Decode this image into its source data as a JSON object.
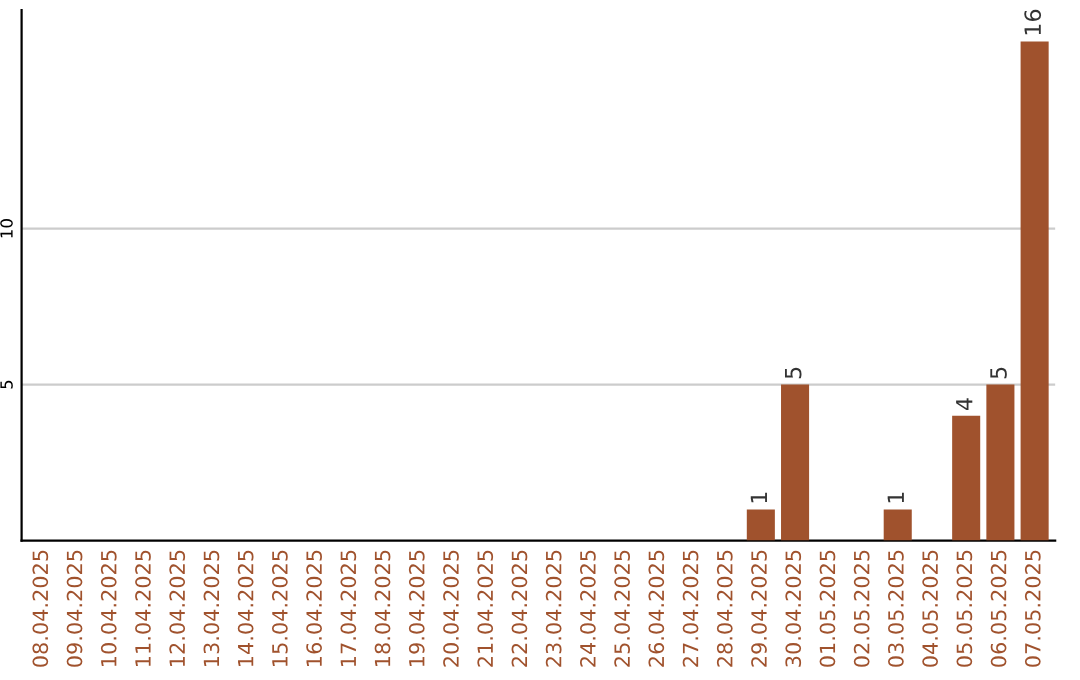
{
  "chart_data": {
    "type": "bar",
    "categories": [
      "08.04.2025",
      "09.04.2025",
      "10.04.2025",
      "11.04.2025",
      "12.04.2025",
      "13.04.2025",
      "14.04.2025",
      "15.04.2025",
      "16.04.2025",
      "17.04.2025",
      "18.04.2025",
      "19.04.2025",
      "20.04.2025",
      "21.04.2025",
      "22.04.2025",
      "23.04.2025",
      "24.04.2025",
      "25.04.2025",
      "26.04.2025",
      "27.04.2025",
      "28.04.2025",
      "29.04.2025",
      "30.04.2025",
      "01.05.2025",
      "02.05.2025",
      "03.05.2025",
      "04.05.2025",
      "05.05.2025",
      "06.05.2025",
      "07.05.2025"
    ],
    "values": [
      0,
      0,
      0,
      0,
      0,
      0,
      0,
      0,
      0,
      0,
      0,
      0,
      0,
      0,
      0,
      0,
      0,
      0,
      0,
      0,
      0,
      1,
      5,
      0,
      0,
      1,
      0,
      4,
      5,
      16
    ],
    "value_labels": [
      null,
      null,
      null,
      null,
      null,
      null,
      null,
      null,
      null,
      null,
      null,
      null,
      null,
      null,
      null,
      null,
      null,
      null,
      null,
      null,
      null,
      "1",
      "5",
      null,
      null,
      "1",
      null,
      "4",
      "5",
      "16"
    ],
    "color": "#a0522d",
    "ylim": [
      0,
      17
    ],
    "yticks": [
      5,
      10
    ],
    "grid": "y"
  }
}
